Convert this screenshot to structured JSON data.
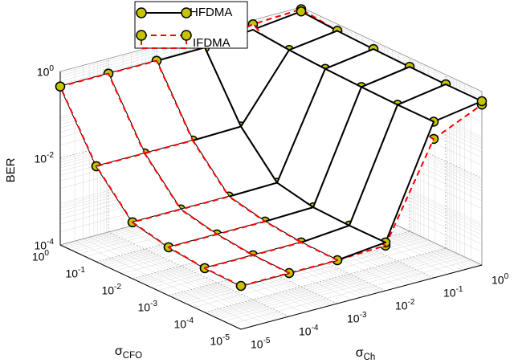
{
  "chart_data": {
    "type": "surface3d",
    "xlabel": "σ_CFO",
    "ylabel": "σ_Ch",
    "zlabel": "BER",
    "x": [
      1e-05,
      0.0001,
      0.001,
      0.01,
      0.1,
      1
    ],
    "y": [
      1e-05,
      0.0001,
      0.001,
      0.01,
      0.1,
      1
    ],
    "xlim": [
      1e-05,
      1
    ],
    "ylim": [
      1e-05,
      1
    ],
    "zlim": [
      0.0001,
      1
    ],
    "zscale": "log",
    "xticks": [
      {
        "value": 1e-05,
        "label": "10^-5"
      },
      {
        "value": 0.0001,
        "label": "10^-4"
      },
      {
        "value": 0.001,
        "label": "10^-3"
      },
      {
        "value": 0.01,
        "label": "10^-2"
      },
      {
        "value": 0.1,
        "label": "10^-1"
      },
      {
        "value": 1,
        "label": "10^0"
      }
    ],
    "yticks": [
      {
        "value": 1e-05,
        "label": "10^-5"
      },
      {
        "value": 0.0001,
        "label": "10^-4"
      },
      {
        "value": 0.001,
        "label": "10^-3"
      },
      {
        "value": 0.01,
        "label": "10^-2"
      },
      {
        "value": 0.1,
        "label": "10^-1"
      },
      {
        "value": 1,
        "label": "10^0"
      }
    ],
    "zticks": [
      {
        "value": 0.0001,
        "label": "10^-4"
      },
      {
        "value": 0.01,
        "label": "10^-2"
      },
      {
        "value": 1,
        "label": "10^0"
      }
    ],
    "grid": true,
    "legend": "upper center",
    "marker_color": "#c4c400",
    "series": [
      {
        "name": "HFDMA",
        "color": "#000000",
        "dash": false,
        "values": [
          [
            0.001,
            0.001,
            0.001,
            0.0013,
            0.4,
            0.6
          ],
          [
            0.00105,
            0.00105,
            0.00105,
            0.0013,
            0.4,
            0.6
          ],
          [
            0.0013,
            0.0013,
            0.0013,
            0.0014,
            0.42,
            0.62
          ],
          [
            0.002,
            0.002,
            0.002,
            0.0021,
            0.45,
            0.65
          ],
          [
            0.016,
            0.016,
            0.016,
            0.017,
            0.5,
            0.7
          ],
          [
            0.45,
            0.45,
            0.45,
            0.46,
            0.6,
            0.8
          ]
        ]
      },
      {
        "name": "IFDMA",
        "color": "#ff0000",
        "dash": true,
        "values": [
          [
            0.001,
            0.001,
            0.001,
            0.0011,
            0.16,
            0.5
          ],
          [
            0.00105,
            0.00105,
            0.00105,
            0.0011,
            0.16,
            0.5
          ],
          [
            0.0013,
            0.0013,
            0.0013,
            0.0013,
            0.17,
            0.52
          ],
          [
            0.002,
            0.002,
            0.002,
            0.002,
            0.18,
            0.55
          ],
          [
            0.016,
            0.016,
            0.016,
            0.016,
            0.24,
            0.7
          ],
          [
            0.45,
            0.45,
            0.45,
            0.46,
            0.8,
            0.9
          ]
        ]
      }
    ]
  }
}
